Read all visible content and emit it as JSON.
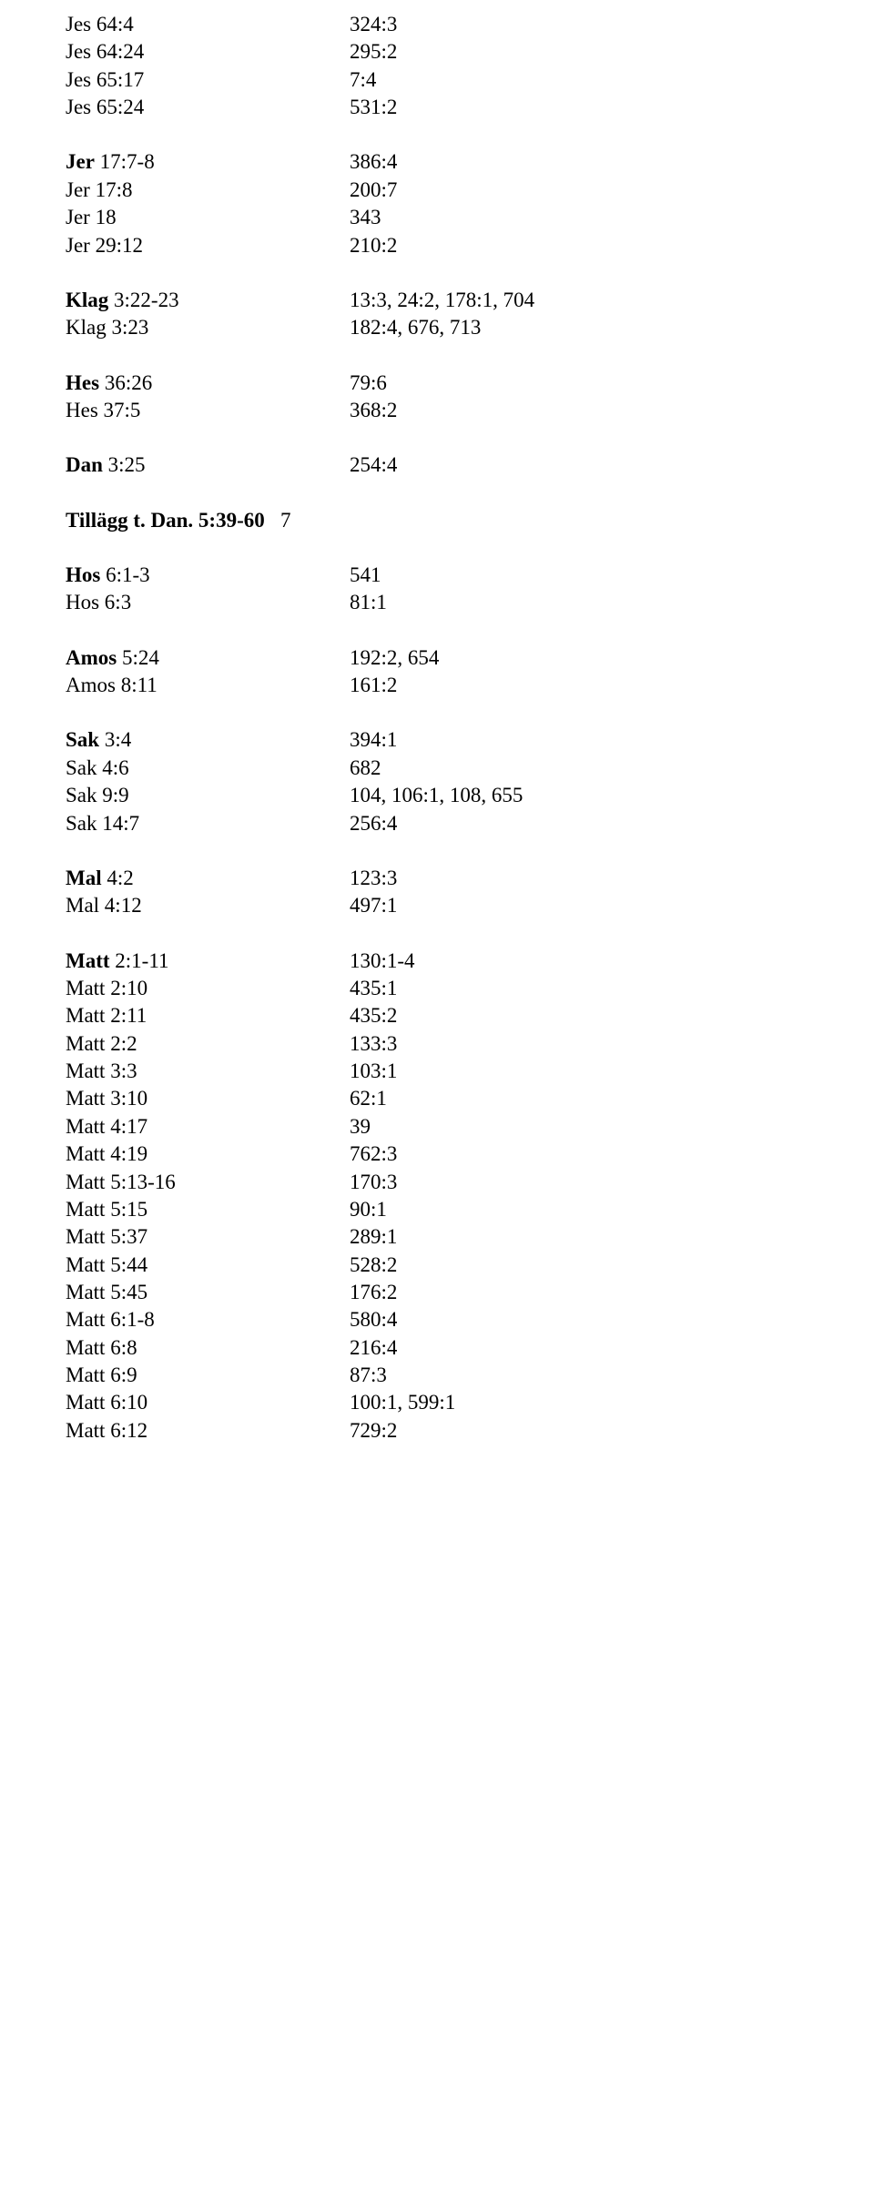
{
  "rows": [
    {
      "l": "Jes 64:4",
      "r": "324:3"
    },
    {
      "l": "Jes 64:24",
      "r": "295:2"
    },
    {
      "l": "Jes 65:17",
      "r": "7:4"
    },
    {
      "l": "Jes 65:24",
      "r": "531:2"
    },
    {
      "gap": true
    },
    {
      "l": "Jer 17:7-8",
      "lb": true,
      "r": "386:4"
    },
    {
      "l": "Jer 17:8",
      "r": "200:7"
    },
    {
      "l": "Jer 18",
      "r": "343"
    },
    {
      "l": "Jer 29:12",
      "r": "210:2"
    },
    {
      "gap": true
    },
    {
      "l": "Klag 3:22-23",
      "lb": true,
      "r": "13:3, 24:2, 178:1, 704"
    },
    {
      "l": "Klag 3:23",
      "r": "182:4, 676, 713"
    },
    {
      "gap": true
    },
    {
      "l": "Hes 36:26",
      "lb": true,
      "r": "79:6"
    },
    {
      "l": "Hes 37:5",
      "r": "368:2"
    },
    {
      "gap": true
    },
    {
      "l": "Dan 3:25",
      "lb": true,
      "r": "254:4"
    },
    {
      "gap": true
    },
    {
      "l": "Tillägg t. Dan. 5:39-60",
      "lb": true,
      "r": "7",
      "special": "tillag"
    },
    {
      "gap": true
    },
    {
      "l": "Hos 6:1-3",
      "lb": true,
      "r": "541"
    },
    {
      "l": "Hos 6:3",
      "r": "81:1"
    },
    {
      "gap": true
    },
    {
      "l": "Amos 5:24",
      "lb": true,
      "r": "192:2, 654"
    },
    {
      "l": "Amos 8:11",
      "r": "161:2"
    },
    {
      "gap": true
    },
    {
      "l": "Sak 3:4",
      "lb": true,
      "r": "394:1"
    },
    {
      "l": "Sak 4:6",
      "r": "682"
    },
    {
      "l": "Sak 9:9",
      "r": "104, 106:1, 108, 655"
    },
    {
      "l": "Sak 14:7",
      "r": "256:4"
    },
    {
      "gap": true
    },
    {
      "l": "Mal 4:2",
      "lb": true,
      "r": "123:3"
    },
    {
      "l": "Mal 4:12",
      "r": "497:1"
    },
    {
      "gap": true
    },
    {
      "l": "Matt 2:1-11",
      "lb": true,
      "r": "130:1-4"
    },
    {
      "l": "Matt 2:10",
      "r": "435:1"
    },
    {
      "l": "Matt 2:11",
      "r": "435:2"
    },
    {
      "l": "Matt 2:2",
      "r": "133:3"
    },
    {
      "l": "Matt 3:3",
      "r": "103:1"
    },
    {
      "l": "Matt 3:10",
      "r": "62:1"
    },
    {
      "l": "Matt 4:17",
      "r": "39"
    },
    {
      "l": "Matt 4:19",
      "r": "762:3"
    },
    {
      "l": "Matt 5:13-16",
      "r": "170:3"
    },
    {
      "l": "Matt 5:15",
      "r": "90:1"
    },
    {
      "l": "Matt 5:37",
      "r": "289:1"
    },
    {
      "l": "Matt 5:44",
      "r": "528:2"
    },
    {
      "l": "Matt 5:45",
      "r": "176:2"
    },
    {
      "l": "Matt 6:1-8",
      "r": "580:4"
    },
    {
      "l": "Matt 6:8",
      "r": "216:4"
    },
    {
      "l": "Matt 6:9",
      "r": "87:3"
    },
    {
      "l": "Matt 6:10",
      "r": "100:1, 599:1"
    },
    {
      "l": "Matt 6:12",
      "r": "729:2"
    }
  ]
}
